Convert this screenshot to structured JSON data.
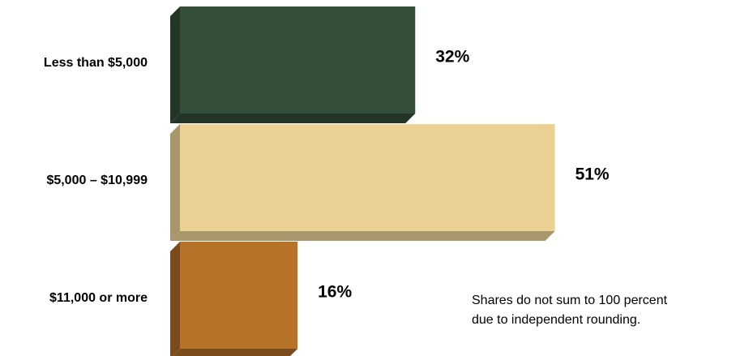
{
  "chart_data": {
    "type": "bar3d_horizontal",
    "categories": [
      "Less than $5,000",
      "$5,000 – $10,999",
      "$11,000 or more"
    ],
    "values": [
      32,
      51,
      16
    ],
    "value_labels": [
      "32%",
      "51%",
      "16%"
    ],
    "colors": [
      "#354e39",
      "#ebd294",
      "#b8732b"
    ],
    "side_colors": [
      "#233526",
      "#a8976a",
      "#7a4b1c"
    ],
    "note": [
      "Shares do not sum to 100 percent",
      "due to independent rounding."
    ]
  }
}
